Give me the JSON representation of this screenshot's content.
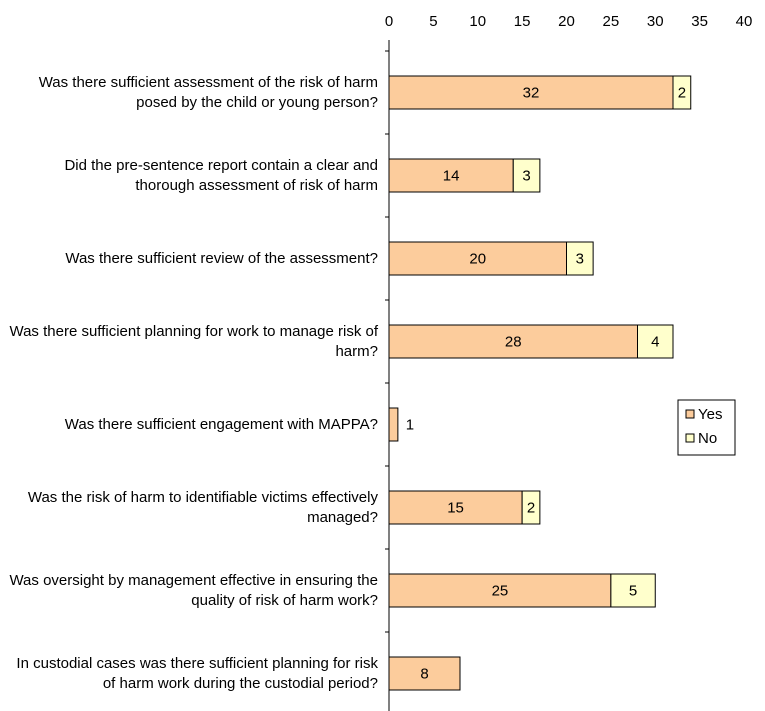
{
  "chart_data": {
    "type": "stacked_bar_horizontal",
    "categories": [
      "Was there sufficient assessment of the risk of harm posed by the child or young person?",
      "Did the pre-sentence report contain a clear and thorough assessment of risk of harm",
      "Was there sufficient review of the assessment?",
      "Was there sufficient planning for work to manage risk of harm?",
      "Was there sufficient engagement with MAPPA?",
      "Was the risk of harm to identifiable victims effectively managed?",
      "Was oversight by management effective in ensuring the quality of risk of harm work?",
      "In custodial cases was there sufficient planning for risk of harm work during the custodial period?"
    ],
    "series": [
      {
        "name": "Yes",
        "color": "#fccc9c",
        "values": [
          32,
          14,
          20,
          28,
          1,
          15,
          25,
          8
        ]
      },
      {
        "name": "No",
        "color": "#ffffcc",
        "values": [
          2,
          3,
          3,
          4,
          null,
          2,
          5,
          null
        ]
      }
    ],
    "xlim": [
      0,
      40
    ],
    "xticks": [
      0,
      5,
      10,
      15,
      20,
      25,
      30,
      35,
      40
    ],
    "legend": "right"
  }
}
